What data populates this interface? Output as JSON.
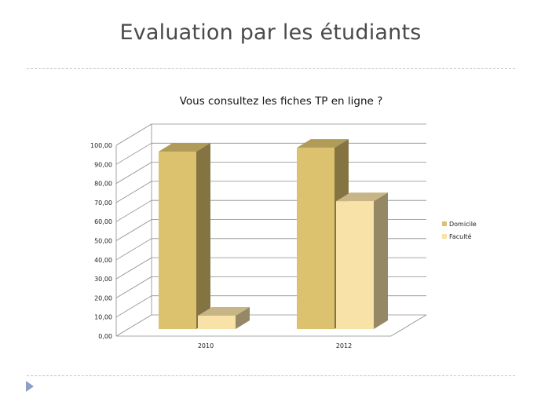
{
  "slide": {
    "title": "Evaluation par les étudiants"
  },
  "chart_data": {
    "type": "bar",
    "title": "Vous consultez les fiches TP en ligne ?",
    "categories": [
      "2010",
      "2012"
    ],
    "series": [
      {
        "name": "Domicile",
        "values": [
          93,
          95
        ],
        "color": "#dcc26e"
      },
      {
        "name": "Faculté",
        "values": [
          7,
          67
        ],
        "color": "#f9e2a8"
      }
    ],
    "ylim": [
      0,
      100
    ],
    "yticks": [
      "0,00",
      "10,00",
      "20,00",
      "30,00",
      "40,00",
      "50,00",
      "60,00",
      "70,00",
      "80,00",
      "90,00",
      "100,00"
    ],
    "grid": true,
    "legend_position": "right",
    "style": "3d-column"
  }
}
